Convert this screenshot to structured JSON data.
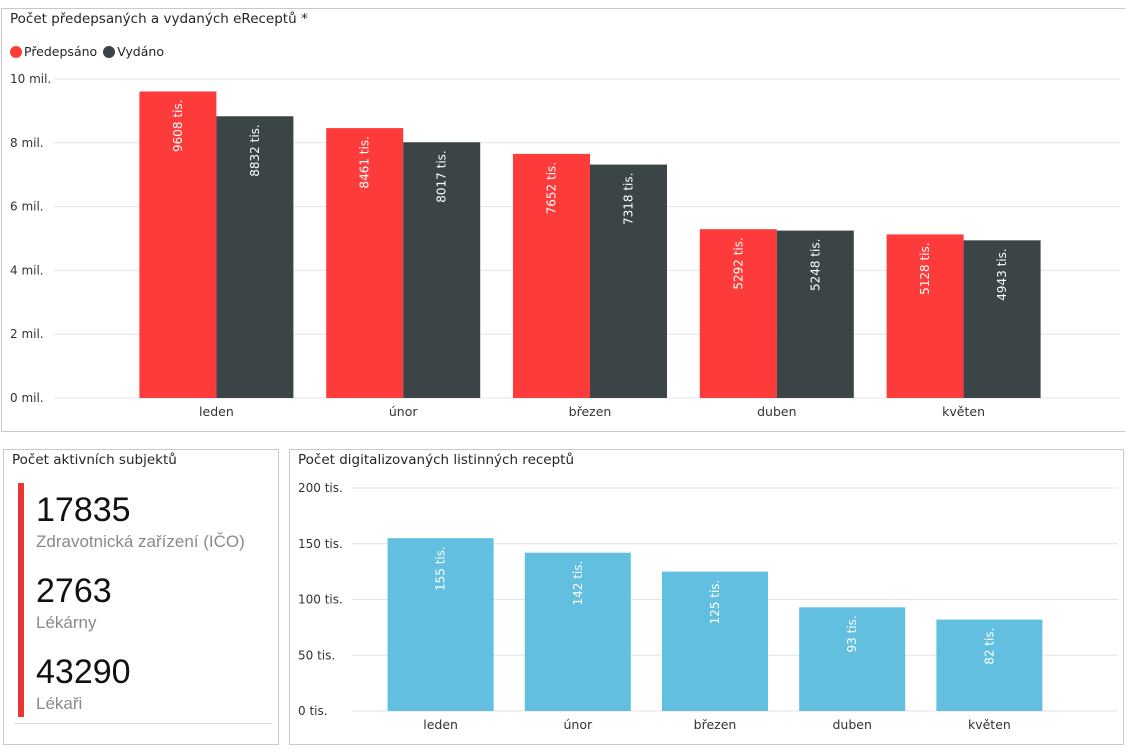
{
  "top_chart": {
    "title": "Počet předepsaných a vydaných eReceptů *",
    "legend": [
      {
        "label": "Předepsáno",
        "color": "#fd3b3b"
      },
      {
        "label": "Vydáno",
        "color": "#3b4447"
      }
    ]
  },
  "kpi": {
    "title": "Počet aktivních subjektů",
    "accent_color": "#e83535",
    "items": [
      {
        "value": "17835",
        "label": "Zdravotnická zařízení (IČO)"
      },
      {
        "value": "2763",
        "label": "Lékárny"
      },
      {
        "value": "43290",
        "label": "Lékaři"
      }
    ]
  },
  "digi_chart": {
    "title": "Počet digitalizovaných listinných receptů"
  },
  "chart_data": [
    {
      "type": "bar",
      "title": "Počet předepsaných a vydaných eReceptů *",
      "categories": [
        "leden",
        "únor",
        "březen",
        "duben",
        "květen"
      ],
      "series": [
        {
          "name": "Předepsáno",
          "color": "#fd3b3b",
          "values": [
            9608000,
            8461000,
            7652000,
            5292000,
            5128000
          ],
          "labels": [
            "9608 tis.",
            "8461 tis.",
            "7652 tis.",
            "5292 tis.",
            "5128 tis."
          ]
        },
        {
          "name": "Vydáno",
          "color": "#3b4447",
          "values": [
            8832000,
            8017000,
            7318000,
            5248000,
            4943000
          ],
          "labels": [
            "8832 tis.",
            "8017 tis.",
            "7318 tis.",
            "5248 tis.",
            "4943 tis."
          ]
        }
      ],
      "ylim": [
        0,
        10000000
      ],
      "yticks": [
        0,
        2000000,
        4000000,
        6000000,
        8000000,
        10000000
      ],
      "ytick_labels": [
        "0 mil.",
        "2 mil.",
        "4 mil.",
        "6 mil.",
        "8 mil.",
        "10 mil."
      ],
      "grid": true,
      "legend_position": "top-left"
    },
    {
      "type": "bar",
      "title": "Počet digitalizovaných listinných receptů",
      "categories": [
        "leden",
        "únor",
        "březen",
        "duben",
        "květen"
      ],
      "series": [
        {
          "color": "#62bfe0",
          "values": [
            155000,
            142000,
            125000,
            93000,
            82000
          ],
          "labels": [
            "155 tis.",
            "142 tis.",
            "125 tis.",
            "93 tis.",
            "82 tis."
          ]
        }
      ],
      "ylim": [
        0,
        200000
      ],
      "yticks": [
        0,
        50000,
        100000,
        150000,
        200000
      ],
      "ytick_labels": [
        "0 tis.",
        "50 tis.",
        "100 tis.",
        "150 tis.",
        "200 tis."
      ],
      "grid": true
    }
  ]
}
